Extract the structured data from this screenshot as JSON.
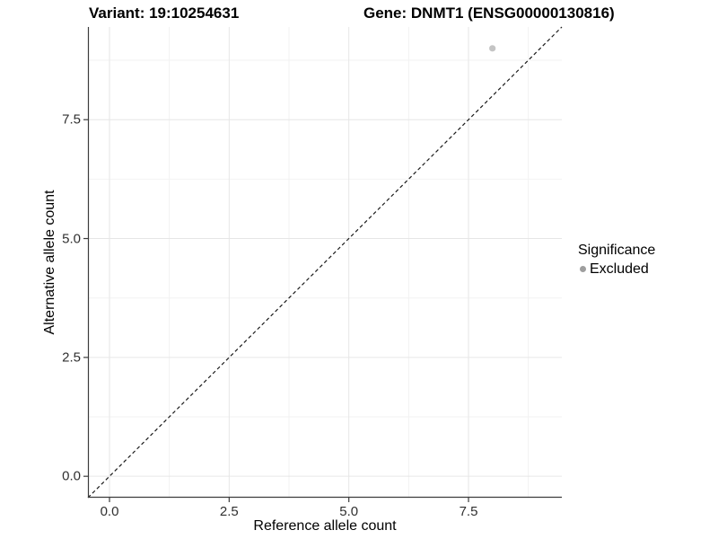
{
  "titles": {
    "variant": "Variant: 19:10254631",
    "gene": "Gene: DNMT1 (ENSG00000130816)"
  },
  "chart_data": {
    "type": "scatter",
    "xlabel": "Reference allele count",
    "ylabel": "Alternative allele count",
    "xlim": [
      -0.45,
      9.45
    ],
    "ylim": [
      -0.45,
      9.45
    ],
    "x_ticks": {
      "values": [
        0.0,
        2.5,
        5.0,
        7.5
      ],
      "labels": [
        "0.0",
        "2.5",
        "5.0",
        "7.5"
      ]
    },
    "y_ticks": {
      "values": [
        0.0,
        2.5,
        5.0,
        7.5
      ],
      "labels": [
        "0.0",
        "2.5",
        "5.0",
        "7.5"
      ]
    },
    "x_minor_gridlines": [
      1.25,
      3.75,
      6.25,
      8.75
    ],
    "y_minor_gridlines": [
      1.25,
      3.75,
      6.25,
      8.75
    ],
    "grid": "major and minor, light gray on white",
    "reference_line": {
      "type": "identity",
      "style": "dashed",
      "from": [
        -0.45,
        -0.45
      ],
      "to": [
        9.45,
        9.45
      ]
    },
    "series": [
      {
        "name": "Excluded",
        "marker": "circle",
        "color": "#c4c4c4",
        "points": [
          {
            "x": 8,
            "y": 9
          }
        ]
      }
    ],
    "legend": {
      "title": "Significance",
      "position": "right",
      "items": [
        {
          "label": "Excluded",
          "marker": "circle",
          "color": "#9e9e9e"
        }
      ]
    }
  },
  "colors": {
    "background": "#ffffff",
    "grid_major": "#e6e6e6",
    "grid_minor": "#f2f2f2",
    "axis_line": "#3c3c3c",
    "tick_mark": "#3c3c3c",
    "dashed_line": "#1a1a1a",
    "point": "#c4c4c4",
    "legend_marker": "#9e9e9e",
    "title_text": "#000000",
    "tick_text": "#303030"
  }
}
